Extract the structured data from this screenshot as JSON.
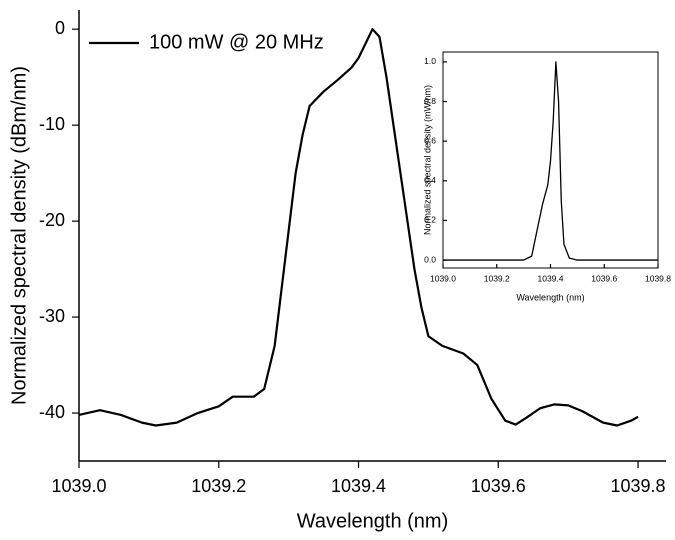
{
  "chart_data": [
    {
      "type": "line",
      "x_label": "Wavelength (nm)",
      "y_label": "Normalized spectral density (dBm/nm)",
      "x": [
        1039.0,
        1039.03,
        1039.06,
        1039.09,
        1039.11,
        1039.14,
        1039.17,
        1039.2,
        1039.22,
        1039.25,
        1039.265,
        1039.28,
        1039.29,
        1039.3,
        1039.31,
        1039.32,
        1039.33,
        1039.35,
        1039.37,
        1039.39,
        1039.4,
        1039.41,
        1039.42,
        1039.43,
        1039.44,
        1039.45,
        1039.46,
        1039.47,
        1039.48,
        1039.49,
        1039.5,
        1039.52,
        1039.55,
        1039.57,
        1039.59,
        1039.61,
        1039.625,
        1039.64,
        1039.66,
        1039.68,
        1039.7,
        1039.72,
        1039.75,
        1039.77,
        1039.79,
        1039.8
      ],
      "series": [
        {
          "name": "100 mW @ 20 MHz",
          "color": "#000000",
          "values": [
            -40.2,
            -39.7,
            -40.2,
            -41.0,
            -41.3,
            -41.0,
            -40.0,
            -39.3,
            -38.3,
            -38.3,
            -37.5,
            -33,
            -27,
            -21,
            -15,
            -11,
            -8,
            -6.5,
            -5.3,
            -4,
            -3,
            -1.5,
            0,
            -0.8,
            -5,
            -10,
            -15,
            -20,
            -25,
            -29,
            -32,
            -33,
            -33.8,
            -35,
            -38.5,
            -40.8,
            -41.2,
            -40.5,
            -39.5,
            -39.1,
            -39.2,
            -39.8,
            -41.0,
            -41.3,
            -40.8,
            -40.4
          ]
        }
      ],
      "xlim": [
        1039.0,
        1039.84
      ],
      "xticks": [
        {
          "value": 1039,
          "label": "1039.0"
        },
        1039.2,
        1039.4,
        1039.6,
        1039.8
      ],
      "ylim": [
        -45,
        2
      ],
      "yticks": [
        -40,
        -30,
        -20,
        -10,
        0
      ],
      "legend": "top-left"
    },
    {
      "type": "line",
      "x_label": "Wavelength (nm)",
      "y_label": "Normalized spectral density (mW/nm)",
      "x": [
        1039.0,
        1039.3,
        1039.33,
        1039.35,
        1039.37,
        1039.39,
        1039.4,
        1039.41,
        1039.42,
        1039.43,
        1039.44,
        1039.45,
        1039.47,
        1039.5,
        1039.8
      ],
      "series": [
        {
          "color": "#000000",
          "values": [
            0,
            0,
            0.02,
            0.15,
            0.28,
            0.38,
            0.5,
            0.7,
            1.0,
            0.8,
            0.3,
            0.08,
            0.01,
            0,
            0
          ]
        }
      ],
      "xlim": [
        1039.0,
        1039.8
      ],
      "xticks": [
        {
          "value": 1039,
          "label": "1039.0"
        },
        1039.2,
        1039.4,
        1039.6,
        1039.8
      ],
      "ylim": [
        -0.04,
        1.05
      ],
      "yticks": [
        {
          "value": 0,
          "label": "0.0"
        },
        0.2,
        0.4,
        0.6,
        0.8,
        {
          "value": 1,
          "label": "1.0"
        }
      ]
    }
  ]
}
